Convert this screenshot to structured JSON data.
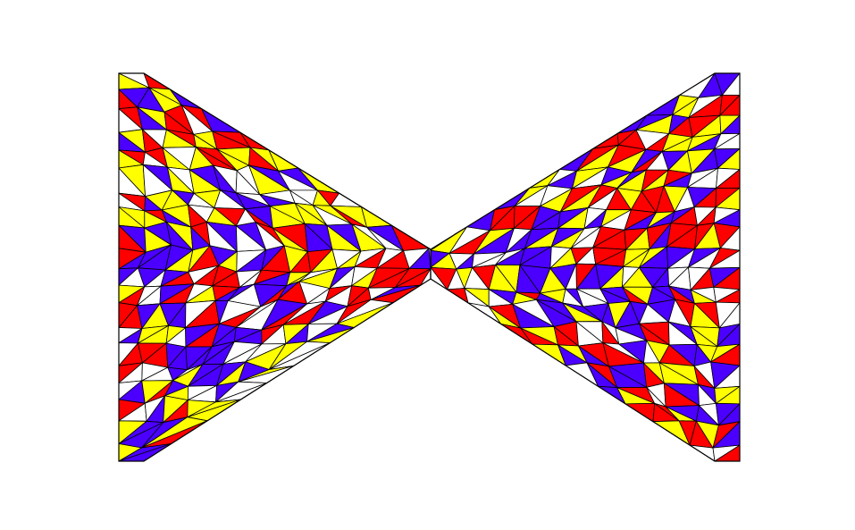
{
  "figure": {
    "kind": "triangulated-mesh-4-coloring",
    "shape": "bowtie",
    "palette": {
      "red": "#FF0000",
      "blue": "#4B00FF",
      "yellow": "#FFFF00",
      "white": "#FFFFFF",
      "edge": "#000000",
      "background": "#FFFFFF"
    },
    "color_order": [
      "red",
      "blue",
      "yellow",
      "white"
    ],
    "mesh_seed": 7
  }
}
